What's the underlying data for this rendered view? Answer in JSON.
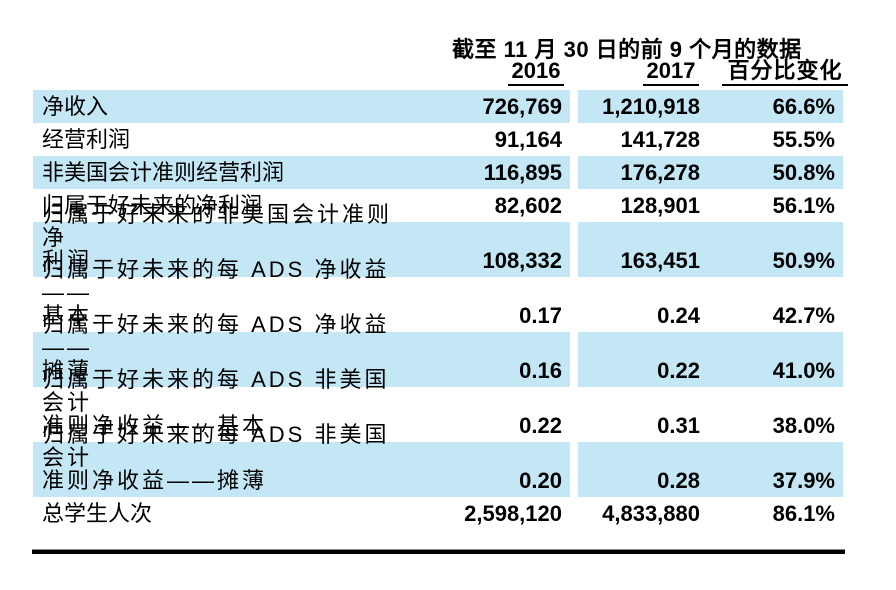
{
  "header": {
    "title": "截至 11 月 30 日的前 9 个月的数据",
    "columns": {
      "y2016": "2016",
      "y2017": "2017",
      "pct": "百分比变化"
    }
  },
  "table": {
    "rows": [
      {
        "label": "净收入",
        "v2016": "726,769",
        "v2017": "1,210,918",
        "pct": "66.6%",
        "shaded": true
      },
      {
        "label": "经营利润",
        "v2016": "91,164",
        "v2017": "141,728",
        "pct": "55.5%",
        "shaded": false
      },
      {
        "label": "非美国会计准则经营利润",
        "v2016": "116,895",
        "v2017": "176,278",
        "pct": "50.8%",
        "shaded": true
      },
      {
        "label": "归属于好未来的净利润",
        "v2016": "82,602",
        "v2017": "128,901",
        "pct": "56.1%",
        "shaded": false
      },
      {
        "label": "归属于好未来的非美国会计准则净\n利润",
        "v2016": "108,332",
        "v2017": "163,451",
        "pct": "50.9%",
        "shaded": true
      },
      {
        "label": "归属于好未来的每 ADS 净收益——\n基本",
        "v2016": "0.17",
        "v2017": "0.24",
        "pct": "42.7%",
        "shaded": false
      },
      {
        "label": "归属于好未来的每 ADS 净收益——\n摊薄",
        "v2016": "0.16",
        "v2017": "0.22",
        "pct": "41.0%",
        "shaded": true
      },
      {
        "label": "归属于好未来的每 ADS 非美国会计\n准则净收益——基本",
        "v2016": "0.22",
        "v2017": "0.31",
        "pct": "38.0%",
        "shaded": false
      },
      {
        "label": "归属于好未来的每 ADS 非美国会计\n准则净收益——摊薄",
        "v2016": "0.20",
        "v2017": "0.28",
        "pct": "37.9%",
        "shaded": true
      },
      {
        "label": "总学生人次",
        "v2016": "2,598,120",
        "v2017": "4,833,880",
        "pct": "86.1%",
        "shaded": false
      }
    ]
  },
  "colors": {
    "row_shade": "#C4E7F6",
    "rule": "#000000"
  }
}
